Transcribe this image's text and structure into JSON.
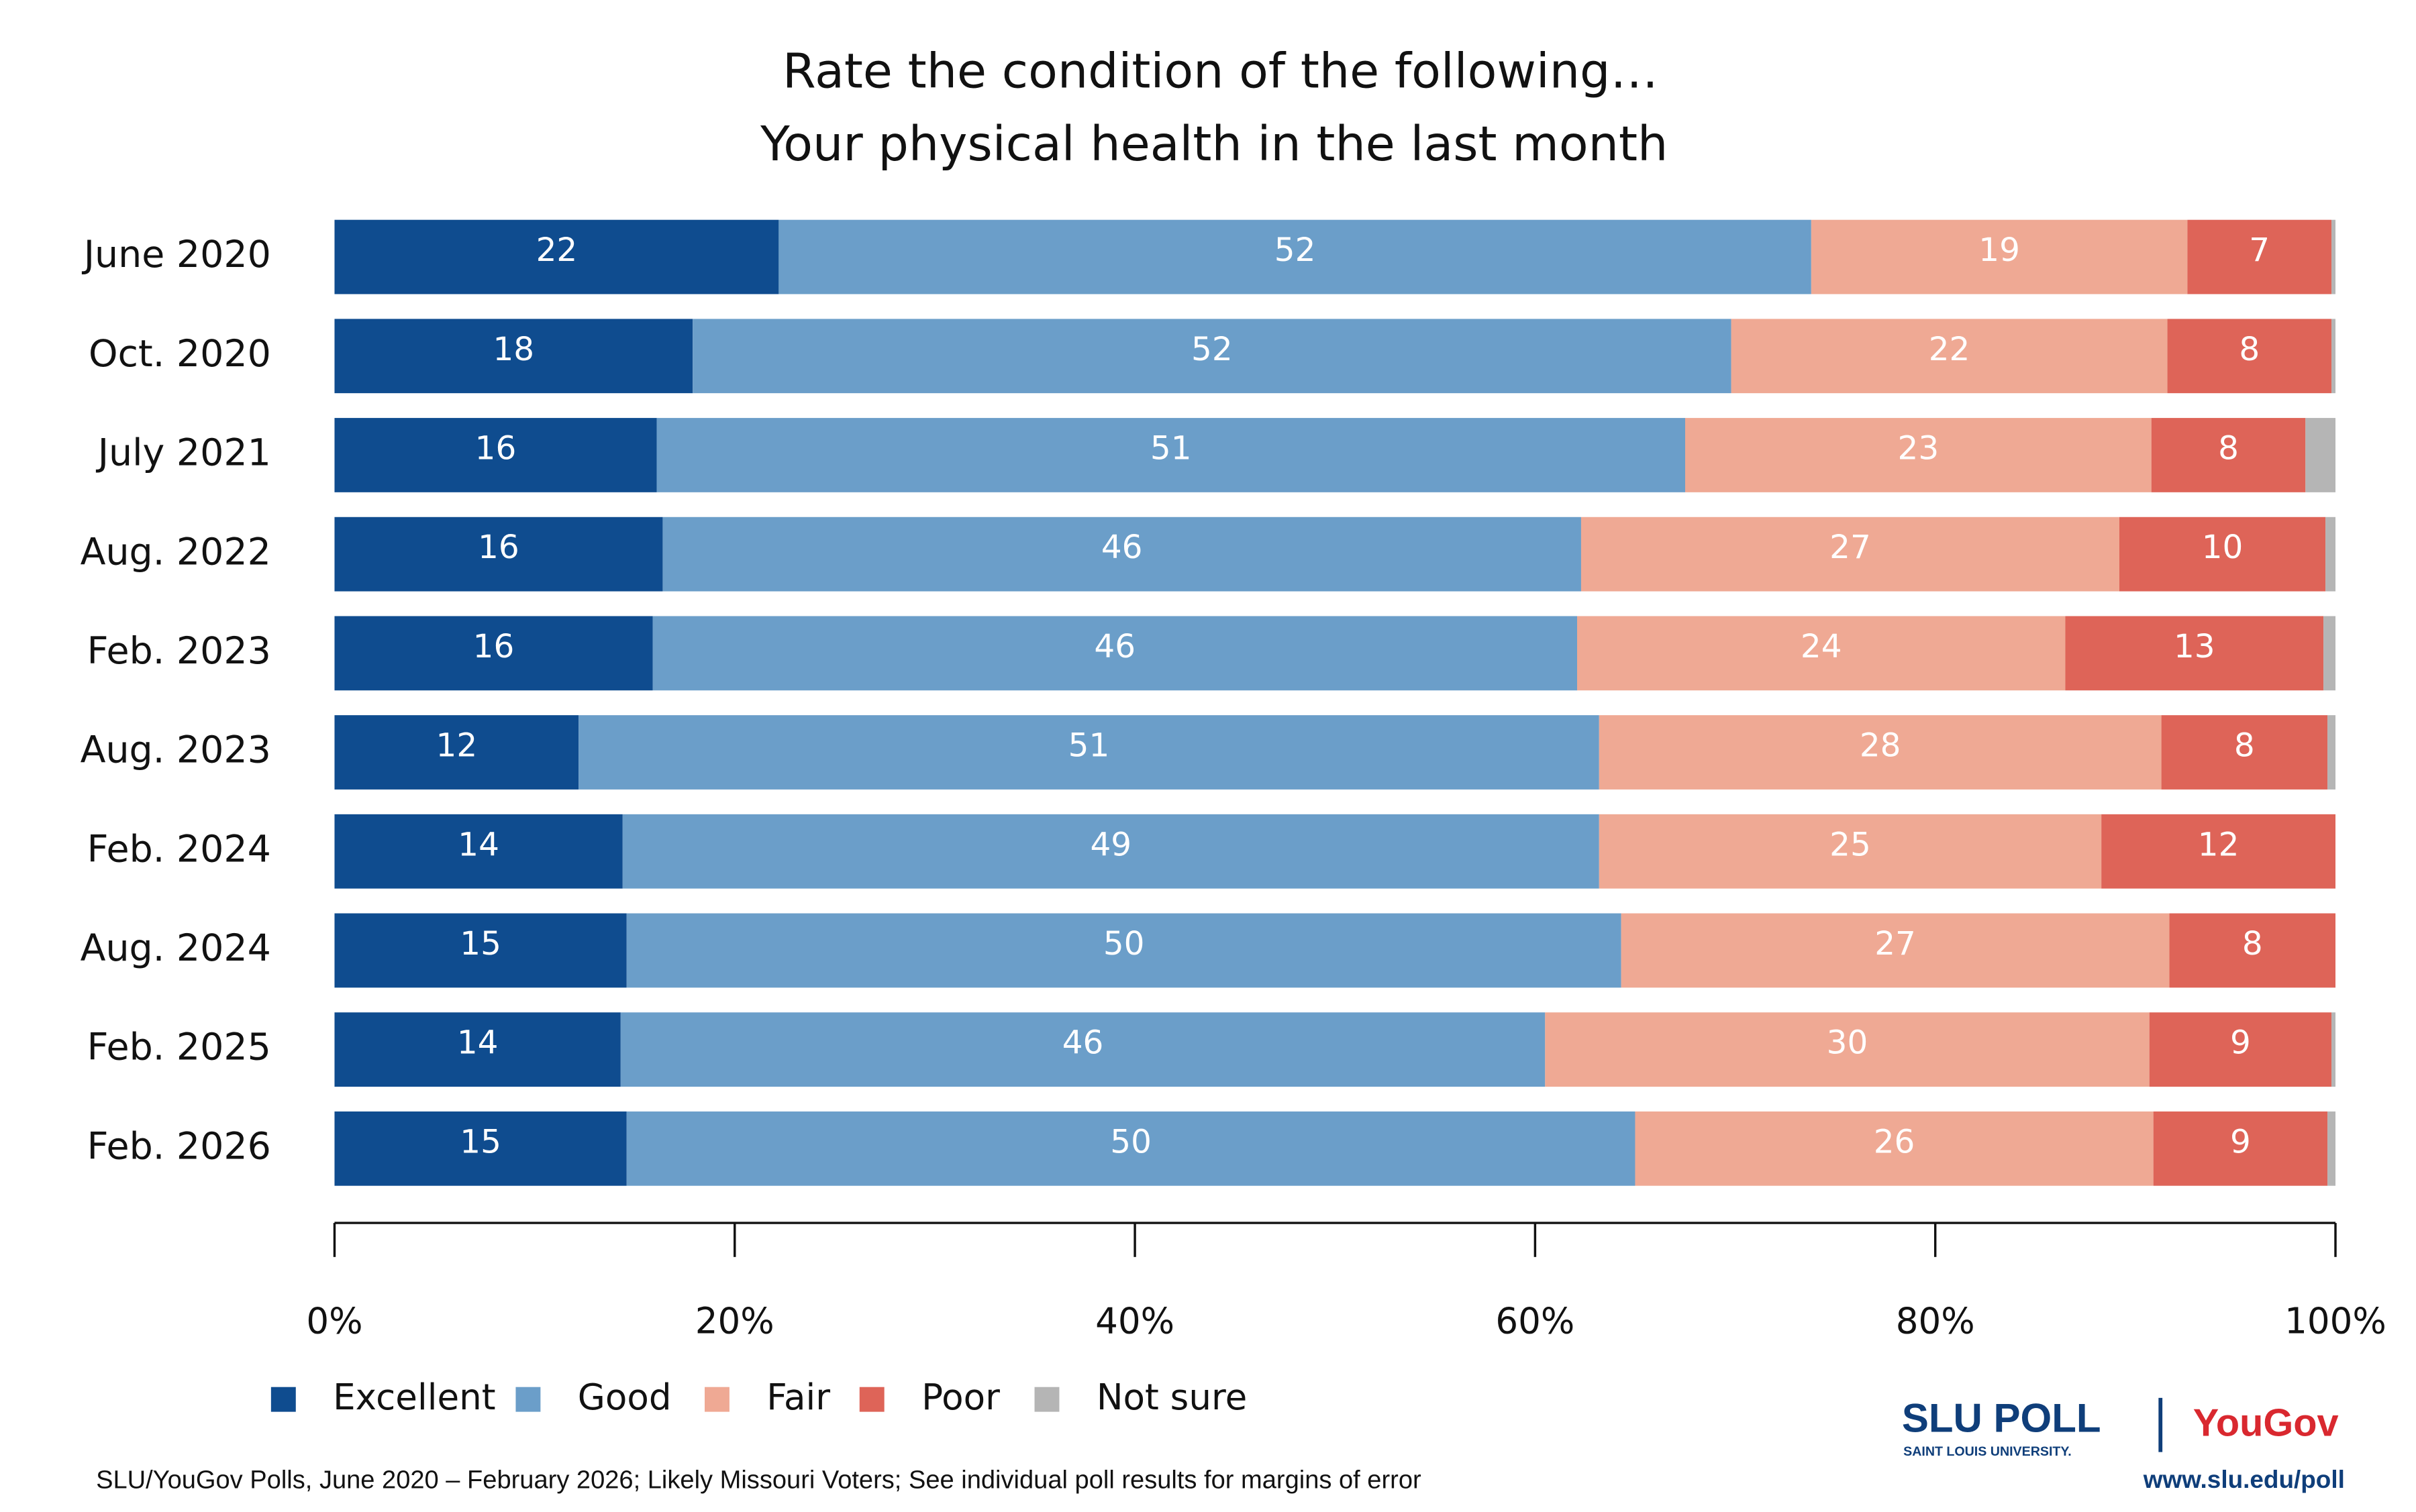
{
  "chart_data": {
    "type": "stacked_barh",
    "title": [
      "Rate the condition of the following…",
      "Your physical health in the last month"
    ],
    "categories": [
      "June 2020",
      "Oct. 2020",
      "July 2021",
      "Aug. 2022",
      "Feb. 2023",
      "Aug. 2023",
      "Feb. 2024",
      "Aug. 2024",
      "Feb. 2025",
      "Feb. 2026"
    ],
    "series": [
      {
        "name": "Excellent",
        "color": "#0f4c8f",
        "values": [
          22.2,
          17.9,
          16.1,
          16.4,
          15.9,
          12.2,
          14.4,
          14.6,
          14.3,
          14.6
        ],
        "value_labels": [
          "22",
          "18",
          "16",
          "16",
          "16",
          "12",
          "14",
          "15",
          "14",
          "15"
        ]
      },
      {
        "name": "Good",
        "color": "#6b9ec9",
        "values": [
          51.6,
          51.9,
          51.4,
          45.9,
          46.2,
          51.0,
          48.8,
          49.7,
          46.2,
          50.4
        ],
        "value_labels": [
          "52",
          "52",
          "51",
          "46",
          "46",
          "51",
          "49",
          "50",
          "46",
          "50"
        ]
      },
      {
        "name": "Fair",
        "color": "#efa994",
        "values": [
          18.8,
          21.8,
          23.3,
          26.9,
          24.4,
          28.1,
          25.1,
          27.4,
          30.2,
          25.9
        ],
        "value_labels": [
          "19",
          "22",
          "23",
          "27",
          "24",
          "28",
          "25",
          "27",
          "30",
          "26"
        ]
      },
      {
        "name": "Poor",
        "color": "#de6458",
        "values": [
          7.2,
          8.2,
          7.7,
          10.3,
          12.9,
          8.3,
          11.7,
          8.3,
          9.1,
          8.7
        ],
        "value_labels": [
          "7",
          "8",
          "8",
          "10",
          "13",
          "8",
          "12",
          "8",
          "9",
          "9"
        ]
      },
      {
        "name": "Not sure",
        "color": "#b5b5b5",
        "values": [
          0.2,
          0.2,
          1.5,
          0.5,
          0.6,
          0.4,
          0,
          0,
          0.2,
          0.4
        ]
      }
    ],
    "xlim": [
      0,
      100
    ],
    "xticks": [
      {
        "value": 0,
        "label": "0%"
      },
      {
        "value": 20,
        "label": "20%"
      },
      {
        "value": 40,
        "label": "40%"
      },
      {
        "value": 60,
        "label": "60%"
      },
      {
        "value": 80,
        "label": "80%"
      },
      {
        "value": 100,
        "label": "100%"
      }
    ],
    "source": "SLU/YouGov Polls, June 2020 – February 2026; Likely Missouri Voters; See individual poll results for margins of error"
  },
  "branding": {
    "slu": "SLU POLL",
    "slu_sub": "SAINT LOUIS UNIVERSITY.",
    "yougov": "YouGov",
    "url": "www.slu.edu/poll"
  }
}
